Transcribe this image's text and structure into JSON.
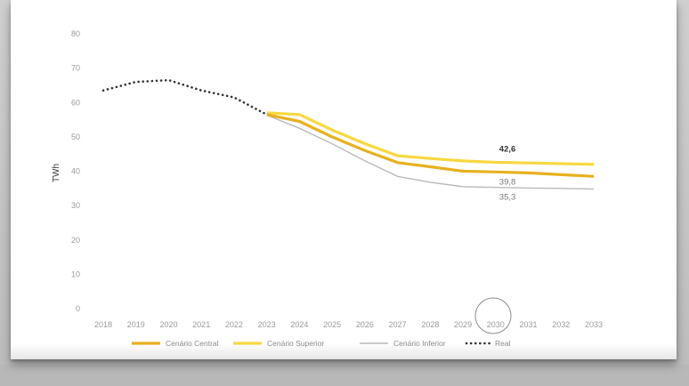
{
  "chart_data": {
    "type": "line",
    "ylabel": "TWh",
    "ylim": [
      0,
      80
    ],
    "yticks": [
      0,
      10,
      20,
      30,
      40,
      50,
      60,
      70,
      80
    ],
    "x": [
      "2018",
      "2019",
      "2020",
      "2021",
      "2022",
      "2023",
      "2024",
      "2025",
      "2026",
      "2027",
      "2028",
      "2029",
      "2030",
      "2031",
      "2032",
      "2033"
    ],
    "series": [
      {
        "name": "Cenário Central",
        "color": "#e8b020",
        "style": "solid",
        "values": [
          null,
          null,
          null,
          null,
          null,
          56.5,
          54.5,
          50,
          46,
          42.5,
          41.3,
          40,
          39.8,
          39.5,
          39,
          38.5
        ]
      },
      {
        "name": "Cenário Superior",
        "color": "#f7d840",
        "style": "solid",
        "values": [
          null,
          null,
          null,
          null,
          null,
          57,
          56.5,
          52,
          48,
          44.5,
          43.7,
          43,
          42.6,
          42.4,
          42.2,
          42
        ]
      },
      {
        "name": "Cenário Inferior",
        "color": "#b9b9b9",
        "style": "solid",
        "values": [
          null,
          null,
          null,
          null,
          null,
          56.3,
          52.5,
          48,
          43,
          38.5,
          36.8,
          35.5,
          35.3,
          35.1,
          35,
          34.8
        ]
      },
      {
        "name": "Real",
        "color": "#333333",
        "style": "dotted",
        "values": [
          63.5,
          66,
          66.5,
          63.5,
          61.5,
          56.5,
          null,
          null,
          null,
          null,
          null,
          null,
          null,
          null,
          null,
          null
        ]
      }
    ],
    "annotations": [
      {
        "text": "42,6",
        "x": "2030",
        "y": 42.6,
        "series": "Cenário Superior",
        "color": "#333333",
        "bold": true
      },
      {
        "text": "39,8",
        "x": "2030",
        "y": 39.8,
        "series": "Cenário Central",
        "color": "#777777",
        "bold": false
      },
      {
        "text": "35,3",
        "x": "2030",
        "y": 35.3,
        "series": "Cenário Inferior",
        "color": "#777777",
        "bold": false
      }
    ],
    "legend": "bottom",
    "grid": false
  }
}
